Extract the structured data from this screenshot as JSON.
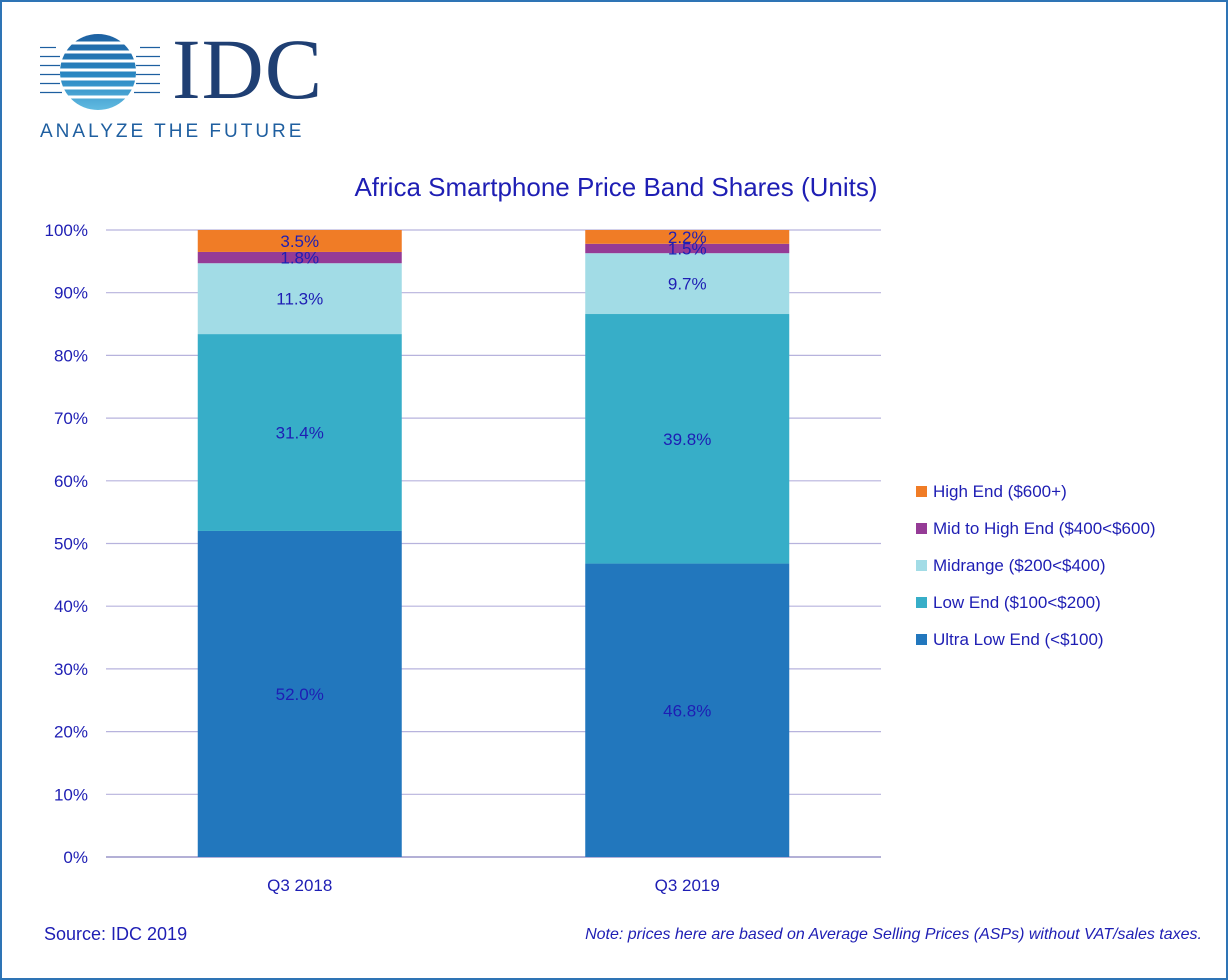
{
  "logo": {
    "name": "IDC",
    "tagline": "ANALYZE THE FUTURE"
  },
  "source": "Source: IDC 2019",
  "note": "Note: prices here are based on Average Selling Prices (ASPs) without VAT/sales taxes.",
  "chart_data": {
    "type": "bar",
    "stacked": true,
    "title": "Africa Smartphone Price Band Shares (Units)",
    "xlabel": "",
    "ylabel": "",
    "categories": [
      "Q3 2018",
      "Q3 2019"
    ],
    "ylim": [
      0,
      100
    ],
    "yticks": [
      "0%",
      "10%",
      "20%",
      "30%",
      "40%",
      "50%",
      "60%",
      "70%",
      "80%",
      "90%",
      "100%"
    ],
    "grid": true,
    "legend_position": "right",
    "series": [
      {
        "name": "Ultra Low End (<$100)",
        "color": "#2277bd",
        "values": [
          52.0,
          46.8
        ],
        "labels": [
          "52.0%",
          "46.8%"
        ]
      },
      {
        "name": "Low End ($100<$200)",
        "color": "#37aec8",
        "values": [
          31.4,
          39.8
        ],
        "labels": [
          "31.4%",
          "39.8%"
        ]
      },
      {
        "name": "Midrange ($200<$400)",
        "color": "#a2dce6",
        "values": [
          11.3,
          9.7
        ],
        "labels": [
          "11.3%",
          "9.7%"
        ]
      },
      {
        "name": "Mid to High End ($400<$600)",
        "color": "#953b96",
        "values": [
          1.8,
          1.5
        ],
        "labels": [
          "1.8%",
          "1.5%"
        ]
      },
      {
        "name": "High End ($600+)",
        "color": "#f07c26",
        "values": [
          3.5,
          2.2
        ],
        "labels": [
          "3.5%",
          "2.2%"
        ]
      }
    ],
    "legend_order": [
      "High End ($600+)",
      "Mid to High End ($400<$600)",
      "Midrange ($200<$400)",
      "Low End ($100<$200)",
      "Ultra Low End (<$100)"
    ],
    "colors": {
      "text": "#1e1eb4",
      "gridline": "#b7b3dd",
      "axis": "#9a96c8"
    }
  }
}
